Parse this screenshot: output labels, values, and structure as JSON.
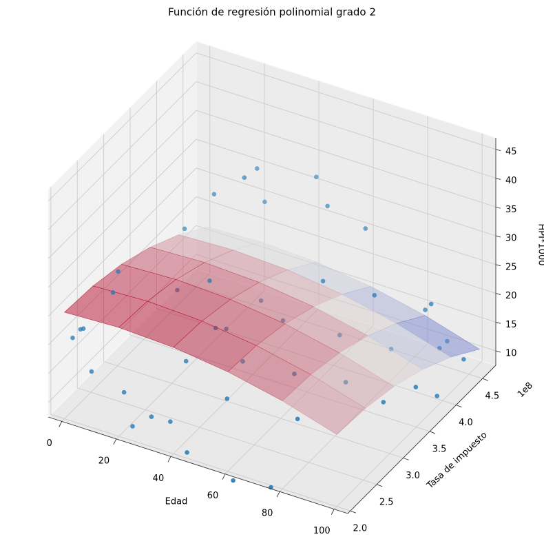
{
  "chart_data": {
    "type": "scatter3d",
    "title": "Función de regresión polinomial grado 2",
    "xlabel": "Edad",
    "ylabel": "Tasa de impuesto",
    "zlabel": "HPI*1000",
    "y_offset_text": "1e8",
    "xlim": [
      -5,
      105
    ],
    "ylim": [
      1.95,
      4.75
    ],
    "zlim": [
      7.5,
      47
    ],
    "xticks": [
      0,
      20,
      40,
      60,
      80,
      100
    ],
    "yticks": [
      {
        "value": 2,
        "label": "2.0"
      },
      2.5,
      {
        "value": 3,
        "label": "3.0"
      },
      3.5,
      {
        "value": 4,
        "label": "4.0"
      },
      4.5
    ],
    "zticks": [
      10,
      15,
      20,
      25,
      30,
      35,
      40,
      45
    ],
    "grid": true,
    "scatter": {
      "color": "#1f77b4",
      "x": [
        5,
        2,
        3,
        10,
        12,
        8,
        18,
        25,
        30,
        35,
        45,
        60,
        70,
        50,
        40,
        22,
        30,
        15,
        20,
        35,
        28,
        40,
        45,
        55,
        60,
        65,
        70,
        80,
        75,
        85,
        90,
        92,
        95,
        88,
        98,
        100,
        96,
        82,
        50,
        42,
        62,
        33,
        48,
        72,
        25
      ],
      "y": [
        2.1,
        2.2,
        2.0,
        2.5,
        2.3,
        2.1,
        2.2,
        2.0,
        2.1,
        2.2,
        2.0,
        2.1,
        2.3,
        2.5,
        2.8,
        3.0,
        3.2,
        3.5,
        3.8,
        3.6,
        4.2,
        3.0,
        3.4,
        3.3,
        3.8,
        3.0,
        3.6,
        3.2,
        4.0,
        3.8,
        4.3,
        4.5,
        4.2,
        3.5,
        4.0,
        4.4,
        3.7,
        4.6,
        4.4,
        4.6,
        4.5,
        2.6,
        2.9,
        2.7,
        4.5
      ],
      "z": [
        23,
        21.5,
        22,
        30,
        28.5,
        16,
        13,
        10,
        11.5,
        10.5,
        8.5,
        5,
        3.5,
        14,
        22,
        24,
        25,
        29,
        33,
        40,
        35,
        20,
        22,
        21,
        24,
        16,
        18,
        15,
        22,
        16,
        20,
        12,
        14,
        10,
        8,
        11,
        12,
        15,
        30,
        32,
        27,
        17,
        16.5,
        12,
        26
      ]
    },
    "surface": {
      "colormap": "coolwarm",
      "x": [
        0,
        20,
        40,
        60,
        80,
        100
      ],
      "y": [
        2.0,
        2.54,
        3.08,
        3.62,
        4.16,
        4.7
      ],
      "z": [
        [
          26,
          26.4,
          26.0,
          24.8,
          22.8,
          20
        ],
        [
          25.6,
          26.0,
          25.6,
          24.4,
          22.4,
          19.6
        ],
        [
          24.4,
          24.8,
          24.4,
          23.2,
          21.2,
          18.4
        ],
        [
          22.4,
          22.8,
          22.4,
          21.2,
          19.2,
          16.4
        ],
        [
          19.6,
          20.0,
          19.6,
          18.4,
          16.4,
          13.6
        ],
        [
          16,
          16.4,
          16.0,
          14.8,
          12.8,
          10.0
        ]
      ]
    }
  }
}
